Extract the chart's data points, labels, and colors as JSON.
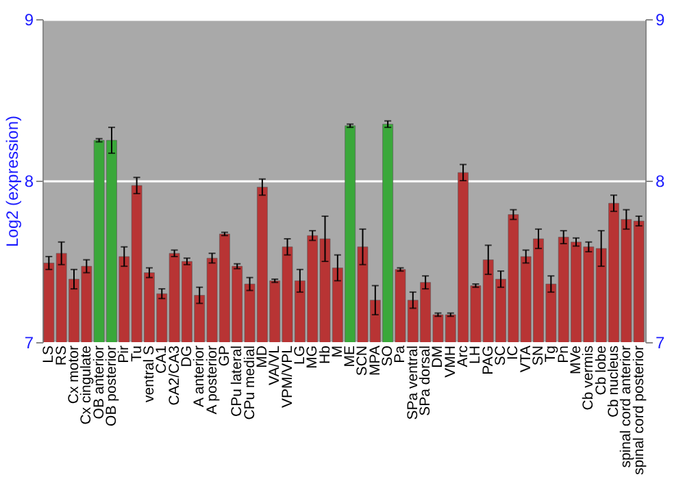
{
  "chart_data": {
    "type": "bar",
    "ylabel": "Log2 (expression)",
    "categories": [
      "LS",
      "RS",
      "Cx motor",
      "Cx cingulate",
      "OB anterior",
      "OB posterior",
      "Pir",
      "Tu",
      "ventral S",
      "CA1",
      "CA2/CA3",
      "DG",
      "A anterior",
      "A posterior",
      "GP",
      "CPu lateral",
      "CPu medial",
      "MD",
      "VA/VL",
      "VPM/VPL",
      "LG",
      "MG",
      "Hb",
      "M",
      "ME",
      "SCN",
      "MPA",
      "SO",
      "Pa",
      "SPa ventral",
      "SPa dorsal",
      "DM",
      "VMH",
      "Arc",
      "LH",
      "PAG",
      "SC",
      "IC",
      "VTA",
      "SN",
      "Tg",
      "Pn",
      "MVe",
      "Cb vermis",
      "Cb lobe",
      "Cb nucleus",
      "spinal cord anterior",
      "spinal cord posterior"
    ],
    "values": [
      7.49,
      7.55,
      7.39,
      7.47,
      8.25,
      8.25,
      7.53,
      7.97,
      7.43,
      7.3,
      7.55,
      7.5,
      7.29,
      7.52,
      7.67,
      7.47,
      7.36,
      7.96,
      7.38,
      7.59,
      7.38,
      7.66,
      7.64,
      7.46,
      8.34,
      7.59,
      7.26,
      8.35,
      7.45,
      7.26,
      7.37,
      7.17,
      7.17,
      8.05,
      7.35,
      7.51,
      7.39,
      7.79,
      7.53,
      7.64,
      7.36,
      7.65,
      7.62,
      7.59,
      7.58,
      7.86,
      7.76,
      7.75
    ],
    "errors": [
      0.04,
      0.07,
      0.06,
      0.04,
      0.01,
      0.08,
      0.06,
      0.05,
      0.03,
      0.03,
      0.02,
      0.02,
      0.05,
      0.03,
      0.01,
      0.015,
      0.04,
      0.05,
      0.01,
      0.05,
      0.07,
      0.03,
      0.14,
      0.08,
      0.01,
      0.11,
      0.09,
      0.02,
      0.01,
      0.05,
      0.04,
      0.01,
      0.01,
      0.05,
      0.01,
      0.09,
      0.05,
      0.03,
      0.04,
      0.06,
      0.05,
      0.04,
      0.025,
      0.03,
      0.11,
      0.05,
      0.06,
      0.03
    ],
    "colors": [
      "#b83434",
      "#b83434",
      "#b83434",
      "#b83434",
      "#3aa83a",
      "#3aa83a",
      "#b83434",
      "#b83434",
      "#b83434",
      "#b83434",
      "#b83434",
      "#b83434",
      "#b83434",
      "#b83434",
      "#b83434",
      "#b83434",
      "#b83434",
      "#b83434",
      "#b83434",
      "#b83434",
      "#b83434",
      "#b83434",
      "#b83434",
      "#b83434",
      "#3aa83a",
      "#b83434",
      "#b83434",
      "#3aa83a",
      "#b83434",
      "#b83434",
      "#b83434",
      "#b83434",
      "#b83434",
      "#b83434",
      "#b83434",
      "#b83434",
      "#b83434",
      "#b83434",
      "#b83434",
      "#b83434",
      "#b83434",
      "#b83434",
      "#b83434",
      "#b83434",
      "#b83434",
      "#b83434",
      "#b83434",
      "#b83434"
    ],
    "ylim": [
      7,
      9
    ],
    "yticks": [
      7,
      8,
      9
    ],
    "y2lim": [
      7,
      9
    ],
    "y2ticks": [
      7,
      8,
      9
    ],
    "grid": "y"
  }
}
